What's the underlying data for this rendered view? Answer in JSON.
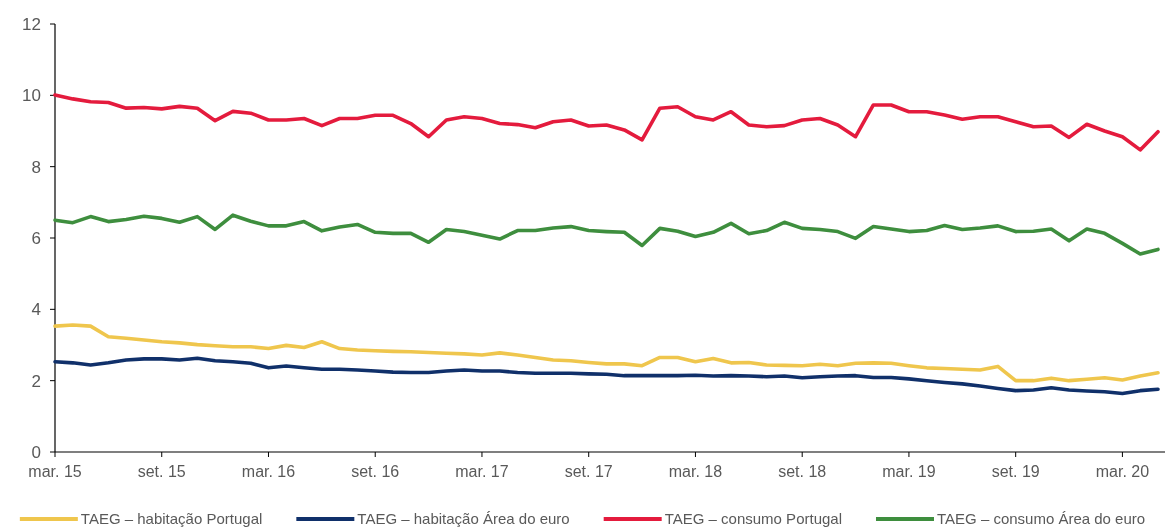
{
  "chart_data": {
    "type": "line",
    "categories": [
      "mar. 15",
      null,
      null,
      null,
      null,
      null,
      "set. 15",
      null,
      null,
      null,
      null,
      null,
      "mar. 16",
      null,
      null,
      null,
      null,
      null,
      "set. 16",
      null,
      null,
      null,
      null,
      null,
      "mar. 17",
      null,
      null,
      null,
      null,
      null,
      "set. 17",
      null,
      null,
      null,
      null,
      null,
      "mar. 18",
      null,
      null,
      null,
      null,
      null,
      "set. 18",
      null,
      null,
      null,
      null,
      null,
      "mar. 19",
      null,
      null,
      null,
      null,
      null,
      "set. 19",
      null,
      null,
      null,
      null,
      null,
      "mar. 20",
      null,
      null
    ],
    "series": [
      {
        "name": "TAEG – habitação Portugal",
        "color": "#efc64d",
        "values": [
          3.53,
          3.56,
          3.53,
          3.23,
          3.19,
          3.14,
          3.09,
          3.06,
          3.01,
          2.98,
          2.95,
          2.95,
          2.9,
          2.99,
          2.93,
          3.09,
          2.9,
          2.86,
          2.84,
          2.82,
          2.81,
          2.79,
          2.77,
          2.75,
          2.72,
          2.78,
          2.72,
          2.65,
          2.58,
          2.56,
          2.51,
          2.47,
          2.47,
          2.42,
          2.65,
          2.65,
          2.53,
          2.62,
          2.5,
          2.51,
          2.44,
          2.43,
          2.42,
          2.46,
          2.42,
          2.49,
          2.5,
          2.49,
          2.42,
          2.36,
          2.34,
          2.32,
          2.3,
          2.4,
          2.0,
          2.0,
          2.07,
          2.0,
          2.04,
          2.08,
          2.02,
          2.13,
          2.22
        ]
      },
      {
        "name": "TAEG – habitação Área do euro",
        "color": "#10306a",
        "values": [
          2.53,
          2.5,
          2.44,
          2.5,
          2.58,
          2.61,
          2.61,
          2.58,
          2.63,
          2.56,
          2.53,
          2.49,
          2.36,
          2.41,
          2.36,
          2.32,
          2.32,
          2.3,
          2.27,
          2.24,
          2.23,
          2.23,
          2.27,
          2.3,
          2.27,
          2.27,
          2.23,
          2.21,
          2.21,
          2.21,
          2.19,
          2.18,
          2.14,
          2.14,
          2.14,
          2.14,
          2.15,
          2.13,
          2.14,
          2.13,
          2.11,
          2.13,
          2.08,
          2.11,
          2.13,
          2.14,
          2.09,
          2.09,
          2.05,
          2.0,
          1.95,
          1.91,
          1.85,
          1.78,
          1.72,
          1.74,
          1.8,
          1.74,
          1.71,
          1.69,
          1.64,
          1.72,
          1.76
        ]
      },
      {
        "name": "TAEG – consumo Portugal",
        "color": "#e41b3d",
        "values": [
          10.01,
          9.9,
          9.82,
          9.8,
          9.64,
          9.66,
          9.62,
          9.69,
          9.64,
          9.29,
          9.55,
          9.5,
          9.31,
          9.31,
          9.35,
          9.15,
          9.35,
          9.35,
          9.44,
          9.44,
          9.21,
          8.84,
          9.31,
          9.4,
          9.35,
          9.21,
          9.18,
          9.09,
          9.26,
          9.31,
          9.14,
          9.17,
          9.03,
          8.75,
          9.64,
          9.68,
          9.4,
          9.31,
          9.54,
          9.17,
          9.12,
          9.15,
          9.31,
          9.35,
          9.17,
          8.84,
          9.73,
          9.73,
          9.54,
          9.54,
          9.45,
          9.33,
          9.4,
          9.4,
          9.26,
          9.12,
          9.14,
          8.82,
          9.19,
          9.0,
          8.84,
          8.47,
          8.98
        ]
      },
      {
        "name": "TAEG – consumo Área do euro",
        "color": "#3e8e3e",
        "values": [
          6.5,
          6.43,
          6.6,
          6.46,
          6.52,
          6.61,
          6.55,
          6.44,
          6.6,
          6.24,
          6.64,
          6.47,
          6.34,
          6.34,
          6.46,
          6.2,
          6.31,
          6.38,
          6.16,
          6.13,
          6.13,
          5.88,
          6.24,
          6.18,
          6.08,
          5.97,
          6.21,
          6.21,
          6.28,
          6.32,
          6.21,
          6.18,
          6.16,
          5.79,
          6.27,
          6.19,
          6.04,
          6.16,
          6.41,
          6.12,
          6.21,
          6.44,
          6.27,
          6.24,
          6.18,
          5.99,
          6.32,
          6.25,
          6.18,
          6.21,
          6.35,
          6.24,
          6.28,
          6.34,
          6.18,
          6.19,
          6.25,
          5.92,
          6.25,
          6.13,
          5.85,
          5.55,
          5.68
        ]
      }
    ],
    "ylim": [
      0,
      12
    ],
    "yticks": [
      0,
      2,
      4,
      6,
      8,
      10,
      12
    ],
    "grid": false,
    "legend": "bottom",
    "line_style": "solid"
  }
}
